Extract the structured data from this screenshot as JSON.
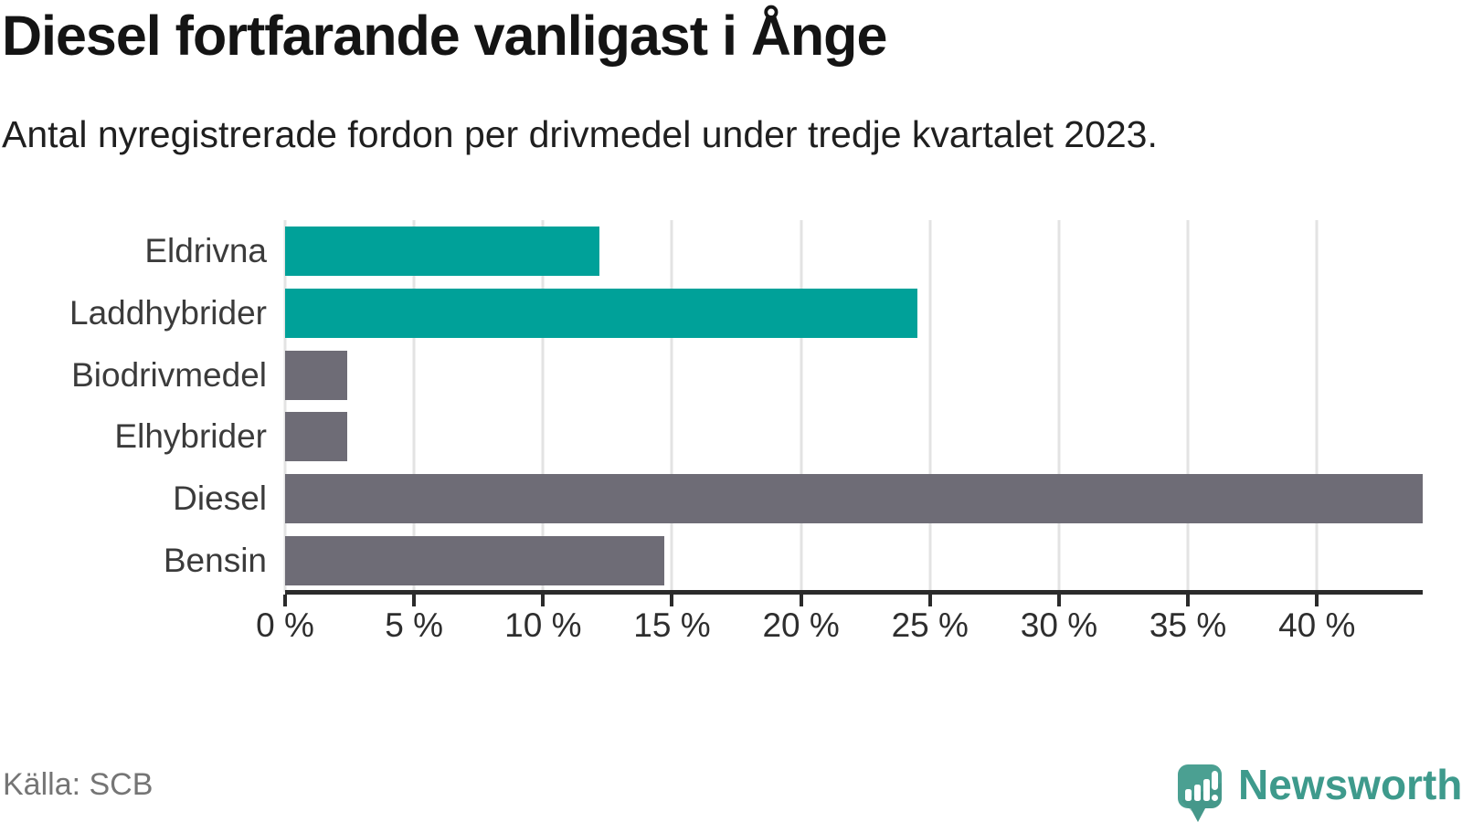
{
  "header": {
    "title": "Diesel fortfarande vanligast i Ånge",
    "subtitle": "Antal nyregistrerade fordon per drivmedel under tredje kvartalet 2023."
  },
  "chart_data": {
    "type": "bar",
    "orientation": "horizontal",
    "title": "Diesel fortfarande vanligast i Ånge",
    "subtitle": "Antal nyregistrerade fordon per drivmedel under tredje kvartalet 2023.",
    "categories": [
      "Eldrivna",
      "Laddhybrider",
      "Biodrivmedel",
      "Elhybrider",
      "Diesel",
      "Bensin"
    ],
    "values": [
      12.2,
      24.5,
      2.4,
      2.4,
      44.1,
      14.7
    ],
    "unit": "%",
    "bar_colors": [
      "#00a199",
      "#00a199",
      "#6e6c76",
      "#6e6c76",
      "#6e6c76",
      "#6e6c76"
    ],
    "xlabel": "",
    "ylabel": "",
    "xlim": [
      0,
      44.1
    ],
    "xticks": [
      0,
      5,
      10,
      15,
      20,
      25,
      30,
      35,
      40
    ],
    "xtick_labels": [
      "0 %",
      "5 %",
      "10 %",
      "15 %",
      "20 %",
      "25 %",
      "30 %",
      "35 %",
      "40 %"
    ],
    "grid": true,
    "legend": false
  },
  "footer": {
    "source": "Källa: SCB",
    "brand": "Newsworthy"
  },
  "colors": {
    "accent_teal": "#00a199",
    "bar_gray": "#6e6c76",
    "brand_teal": "#3e9a8c",
    "grid": "#e3e3e3",
    "axis": "#2b2b2b"
  },
  "icons": {
    "logo": "newsworthy-speech-bubble-chart-icon"
  }
}
